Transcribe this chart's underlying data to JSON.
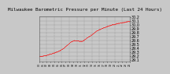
{
  "title": "Milwaukee Barometric Pressure per Minute (Last 24 Hours)",
  "background_color": "#c8c8c8",
  "plot_bg_color": "#c8c8c8",
  "line_color": "#ff0000",
  "grid_color": "#888888",
  "ylim": [
    29.05,
    30.22
  ],
  "yticks": [
    29.1,
    29.2,
    29.3,
    29.4,
    29.5,
    29.6,
    29.7,
    29.8,
    29.9,
    30.0,
    30.1,
    30.2
  ],
  "ylabel_fontsize": 3.5,
  "title_fontsize": 4.2,
  "num_points": 1440,
  "xlim": [
    0,
    1440
  ]
}
